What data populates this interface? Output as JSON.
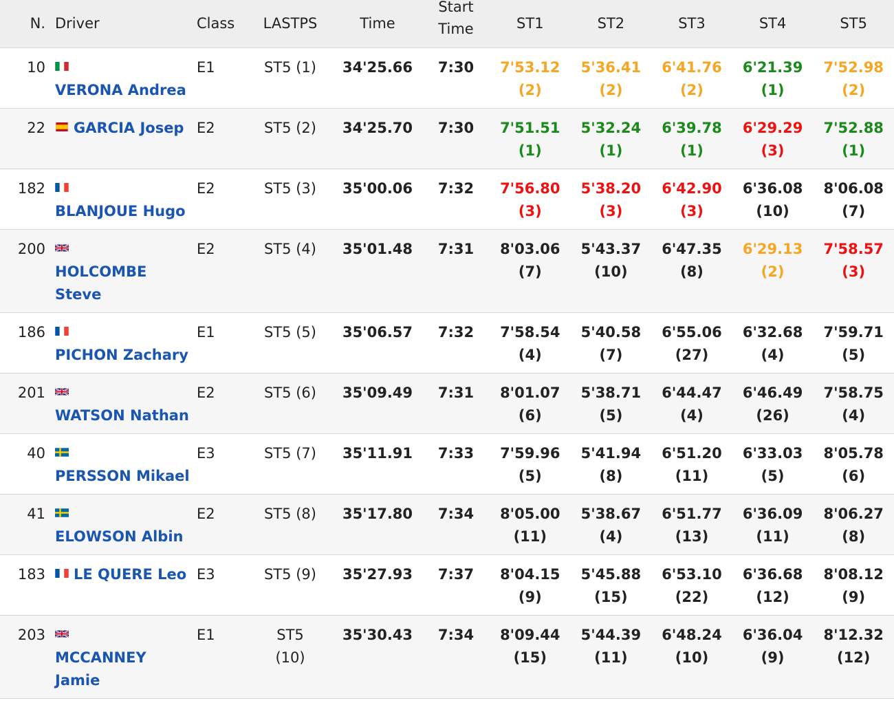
{
  "header": {
    "num": "N.",
    "driver": "Driver",
    "class": "Class",
    "lastps": "LASTPS",
    "time": "Time",
    "start_top": "Start",
    "start_bottom": "Time",
    "st1": "ST1",
    "st2": "ST2",
    "st3": "ST3",
    "st4": "ST4",
    "st5": "ST5"
  },
  "colors": {
    "first": "#1a8a1a",
    "second": "#f5a623",
    "third": "#ee1111",
    "default": "#222222",
    "link": "#1a55b0"
  },
  "rows": [
    {
      "num": "10",
      "flag": "italy-flag-icon",
      "driver": "VERONA Andrea",
      "class": "E1",
      "lastps": "ST5 (1)",
      "time": "34'25.66",
      "start": "7:30",
      "st": [
        {
          "t": "7'53.12",
          "p": "(2)",
          "c": "second"
        },
        {
          "t": "5'36.41",
          "p": "(2)",
          "c": "second"
        },
        {
          "t": "6'41.76",
          "p": "(2)",
          "c": "second"
        },
        {
          "t": "6'21.39",
          "p": "(1)",
          "c": "first"
        },
        {
          "t": "7'52.98",
          "p": "(2)",
          "c": "second"
        }
      ]
    },
    {
      "num": "22",
      "flag": "spain-flag-icon",
      "driver": "GARCIA Josep",
      "class": "E2",
      "lastps": "ST5 (2)",
      "time": "34'25.70",
      "start": "7:30",
      "st": [
        {
          "t": "7'51.51",
          "p": "(1)",
          "c": "first"
        },
        {
          "t": "5'32.24",
          "p": "(1)",
          "c": "first"
        },
        {
          "t": "6'39.78",
          "p": "(1)",
          "c": "first"
        },
        {
          "t": "6'29.29",
          "p": "(3)",
          "c": "third"
        },
        {
          "t": "7'52.88",
          "p": "(1)",
          "c": "first"
        }
      ]
    },
    {
      "num": "182",
      "flag": "france-flag-icon",
      "driver": "BLANJOUE Hugo",
      "class": "E2",
      "lastps": "ST5 (3)",
      "time": "35'00.06",
      "start": "7:32",
      "st": [
        {
          "t": "7'56.80",
          "p": "(3)",
          "c": "third"
        },
        {
          "t": "5'38.20",
          "p": "(3)",
          "c": "third"
        },
        {
          "t": "6'42.90",
          "p": "(3)",
          "c": "third"
        },
        {
          "t": "6'36.08",
          "p": "(10)",
          "c": "default"
        },
        {
          "t": "8'06.08",
          "p": "(7)",
          "c": "default"
        }
      ]
    },
    {
      "num": "200",
      "flag": "uk-flag-icon",
      "driver": "HOLCOMBE Steve",
      "class": "E2",
      "lastps": "ST5 (4)",
      "time": "35'01.48",
      "start": "7:31",
      "st": [
        {
          "t": "8'03.06",
          "p": "(7)",
          "c": "default"
        },
        {
          "t": "5'43.37",
          "p": "(10)",
          "c": "default"
        },
        {
          "t": "6'47.35",
          "p": "(8)",
          "c": "default"
        },
        {
          "t": "6'29.13",
          "p": "(2)",
          "c": "second"
        },
        {
          "t": "7'58.57",
          "p": "(3)",
          "c": "third"
        }
      ]
    },
    {
      "num": "186",
      "flag": "france-flag-icon",
      "driver": "PICHON Zachary",
      "class": "E1",
      "lastps": "ST5 (5)",
      "time": "35'06.57",
      "start": "7:32",
      "st": [
        {
          "t": "7'58.54",
          "p": "(4)",
          "c": "default"
        },
        {
          "t": "5'40.58",
          "p": "(7)",
          "c": "default"
        },
        {
          "t": "6'55.06",
          "p": "(27)",
          "c": "default"
        },
        {
          "t": "6'32.68",
          "p": "(4)",
          "c": "default"
        },
        {
          "t": "7'59.71",
          "p": "(5)",
          "c": "default"
        }
      ]
    },
    {
      "num": "201",
      "flag": "uk-flag-icon",
      "driver": "WATSON Nathan",
      "class": "E2",
      "lastps": "ST5 (6)",
      "time": "35'09.49",
      "start": "7:31",
      "st": [
        {
          "t": "8'01.07",
          "p": "(6)",
          "c": "default"
        },
        {
          "t": "5'38.71",
          "p": "(5)",
          "c": "default"
        },
        {
          "t": "6'44.47",
          "p": "(4)",
          "c": "default"
        },
        {
          "t": "6'46.49",
          "p": "(26)",
          "c": "default"
        },
        {
          "t": "7'58.75",
          "p": "(4)",
          "c": "default"
        }
      ]
    },
    {
      "num": "40",
      "flag": "sweden-flag-icon",
      "driver": "PERSSON Mikael",
      "class": "E3",
      "lastps": "ST5 (7)",
      "time": "35'11.91",
      "start": "7:33",
      "st": [
        {
          "t": "7'59.96",
          "p": "(5)",
          "c": "default"
        },
        {
          "t": "5'41.94",
          "p": "(8)",
          "c": "default"
        },
        {
          "t": "6'51.20",
          "p": "(11)",
          "c": "default"
        },
        {
          "t": "6'33.03",
          "p": "(5)",
          "c": "default"
        },
        {
          "t": "8'05.78",
          "p": "(6)",
          "c": "default"
        }
      ]
    },
    {
      "num": "41",
      "flag": "sweden-flag-icon",
      "driver": "ELOWSON Albin",
      "class": "E2",
      "lastps": "ST5 (8)",
      "time": "35'17.80",
      "start": "7:34",
      "st": [
        {
          "t": "8'05.00",
          "p": "(11)",
          "c": "default"
        },
        {
          "t": "5'38.67",
          "p": "(4)",
          "c": "default"
        },
        {
          "t": "6'51.77",
          "p": "(13)",
          "c": "default"
        },
        {
          "t": "6'36.09",
          "p": "(11)",
          "c": "default"
        },
        {
          "t": "8'06.27",
          "p": "(8)",
          "c": "default"
        }
      ]
    },
    {
      "num": "183",
      "flag": "france-flag-icon",
      "driver": "LE QUERE Leo",
      "class": "E3",
      "lastps": "ST5 (9)",
      "time": "35'27.93",
      "start": "7:37",
      "st": [
        {
          "t": "8'04.15",
          "p": "(9)",
          "c": "default"
        },
        {
          "t": "5'45.88",
          "p": "(15)",
          "c": "default"
        },
        {
          "t": "6'53.10",
          "p": "(22)",
          "c": "default"
        },
        {
          "t": "6'36.68",
          "p": "(12)",
          "c": "default"
        },
        {
          "t": "8'08.12",
          "p": "(9)",
          "c": "default"
        }
      ]
    },
    {
      "num": "203",
      "flag": "uk-flag-icon",
      "driver": "MCCANNEY Jamie",
      "class": "E1",
      "lastps": "ST5 (10)",
      "time": "35'30.43",
      "start": "7:34",
      "st": [
        {
          "t": "8'09.44",
          "p": "(15)",
          "c": "default"
        },
        {
          "t": "5'44.39",
          "p": "(11)",
          "c": "default"
        },
        {
          "t": "6'48.24",
          "p": "(10)",
          "c": "default"
        },
        {
          "t": "6'36.04",
          "p": "(9)",
          "c": "default"
        },
        {
          "t": "8'12.32",
          "p": "(12)",
          "c": "default"
        }
      ]
    }
  ]
}
